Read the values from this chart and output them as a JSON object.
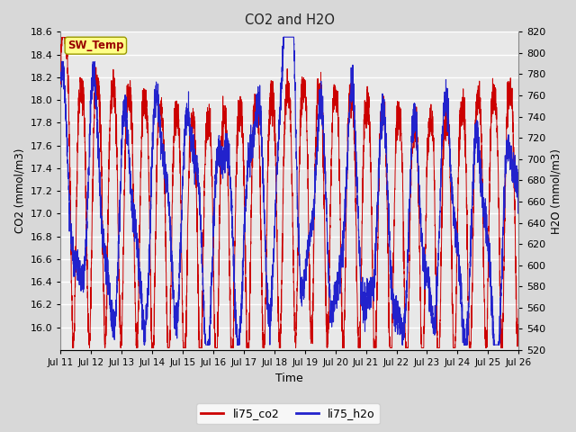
{
  "title": "CO2 and H2O",
  "xlabel": "Time",
  "ylabel_left": "CO2 (mmol/m3)",
  "ylabel_right": "H2O (mmol/m3)",
  "legend_label_co2": "li75_co2",
  "legend_label_h2o": "li75_h2o",
  "co2_color": "#cc0000",
  "h2o_color": "#2222cc",
  "co2_ylim": [
    15.8,
    18.6
  ],
  "h2o_ylim": [
    520,
    820
  ],
  "xtick_labels": [
    "Jul 11",
    "Jul 12",
    "Jul 13",
    "Jul 14",
    "Jul 15",
    "Jul 16",
    "Jul 17",
    "Jul 18",
    "Jul 19",
    "Jul 20",
    "Jul 21",
    "Jul 22",
    "Jul 23",
    "Jul 24",
    "Jul 25",
    "Jul 26"
  ],
  "co2_yticks": [
    16.0,
    16.2,
    16.4,
    16.6,
    16.8,
    17.0,
    17.2,
    17.4,
    17.6,
    17.8,
    18.0,
    18.2,
    18.4,
    18.6
  ],
  "h2o_yticks": [
    520,
    540,
    560,
    580,
    600,
    620,
    640,
    660,
    680,
    700,
    720,
    740,
    760,
    780,
    800,
    820
  ],
  "bg_color": "#d8d8d8",
  "plot_bg_upper": "#e8e8e8",
  "plot_bg_lower": "#e0e0e0",
  "grid_color": "#ffffff",
  "sw_temp_label": "SW_Temp",
  "sw_temp_bg": "#ffff88",
  "sw_temp_fg": "#990000",
  "sw_temp_edge": "#999900"
}
